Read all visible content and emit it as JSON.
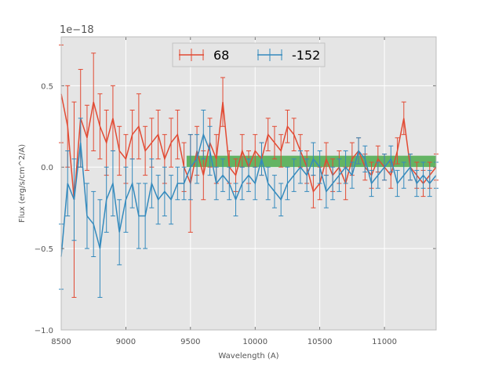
{
  "chart_data": {
    "type": "line",
    "title": "",
    "xlabel": "Wavelength (A)",
    "ylabel": "Flux (erg/s/cm^2/A)",
    "offset_label": "1e−18",
    "xlim": [
      8500,
      11400
    ],
    "ylim": [
      -1.0,
      0.8
    ],
    "grid": true,
    "legend_position": "top-center",
    "x_ticks": [
      8500,
      9000,
      9500,
      10000,
      10500,
      11000
    ],
    "x_tick_labels": [
      "8500",
      "9000",
      "9500",
      "10000",
      "10500",
      "11000"
    ],
    "y_ticks": [
      -1.0,
      -0.5,
      0.0,
      0.5
    ],
    "y_tick_labels": [
      "−1.0",
      "−0.5",
      "0.0",
      "0.5"
    ],
    "band": {
      "x_start": 9470,
      "x_end": 11400,
      "y_low": 0.0,
      "y_high": 0.07,
      "color": "#2ca02c"
    },
    "series": [
      {
        "name": "68",
        "color": "#e24a33",
        "x": [
          8500,
          8550,
          8600,
          8650,
          8700,
          8750,
          8800,
          8850,
          8900,
          8950,
          9000,
          9050,
          9100,
          9150,
          9200,
          9250,
          9300,
          9350,
          9400,
          9450,
          9500,
          9550,
          9600,
          9650,
          9700,
          9750,
          9800,
          9850,
          9900,
          9950,
          10000,
          10050,
          10100,
          10150,
          10200,
          10250,
          10300,
          10350,
          10400,
          10450,
          10500,
          10550,
          10600,
          10650,
          10700,
          10750,
          10800,
          10850,
          10900,
          10950,
          11000,
          11050,
          11100,
          11150,
          11200,
          11250,
          11300,
          11350,
          11400
        ],
        "values": [
          0.45,
          0.25,
          -0.2,
          0.3,
          0.18,
          0.4,
          0.25,
          0.15,
          0.3,
          0.1,
          0.05,
          0.2,
          0.25,
          0.1,
          0.15,
          0.2,
          0.05,
          0.15,
          0.2,
          0.0,
          -0.1,
          0.1,
          -0.05,
          0.15,
          0.05,
          0.4,
          0.0,
          -0.05,
          0.1,
          0.0,
          0.1,
          0.05,
          0.2,
          0.15,
          0.1,
          0.25,
          0.2,
          0.1,
          0.0,
          -0.15,
          -0.1,
          0.05,
          -0.05,
          0.0,
          -0.1,
          0.05,
          0.1,
          0.0,
          -0.05,
          0.05,
          0.0,
          -0.05,
          0.1,
          0.3,
          0.0,
          -0.05,
          -0.1,
          -0.05,
          0.0
        ],
        "errors": [
          0.3,
          0.25,
          0.6,
          0.3,
          0.2,
          0.3,
          0.2,
          0.2,
          0.2,
          0.15,
          0.15,
          0.15,
          0.2,
          0.15,
          0.15,
          0.15,
          0.15,
          0.15,
          0.15,
          0.15,
          0.3,
          0.15,
          0.15,
          0.15,
          0.15,
          0.15,
          0.1,
          0.1,
          0.1,
          0.1,
          0.1,
          0.1,
          0.1,
          0.1,
          0.1,
          0.1,
          0.1,
          0.1,
          0.1,
          0.1,
          0.1,
          0.1,
          0.1,
          0.1,
          0.1,
          0.1,
          0.08,
          0.08,
          0.08,
          0.08,
          0.08,
          0.08,
          0.08,
          0.1,
          0.08,
          0.08,
          0.08,
          0.08,
          0.08
        ]
      },
      {
        "name": "-152",
        "color": "#348abd",
        "x": [
          8500,
          8550,
          8600,
          8650,
          8700,
          8750,
          8800,
          8850,
          8900,
          8950,
          9000,
          9050,
          9100,
          9150,
          9200,
          9250,
          9300,
          9350,
          9400,
          9450,
          9500,
          9550,
          9600,
          9650,
          9700,
          9750,
          9800,
          9850,
          9900,
          9950,
          10000,
          10050,
          10100,
          10150,
          10200,
          10250,
          10300,
          10350,
          10400,
          10450,
          10500,
          10550,
          10600,
          10650,
          10700,
          10750,
          10800,
          10850,
          10900,
          10950,
          11000,
          11050,
          11100,
          11150,
          11200,
          11250,
          11300,
          11350,
          11400
        ],
        "values": [
          -0.55,
          -0.1,
          -0.2,
          0.15,
          -0.3,
          -0.35,
          -0.5,
          -0.2,
          -0.1,
          -0.4,
          -0.2,
          -0.1,
          -0.3,
          -0.3,
          -0.1,
          -0.2,
          -0.15,
          -0.2,
          -0.1,
          -0.1,
          0.0,
          0.05,
          0.2,
          0.1,
          -0.1,
          -0.05,
          -0.1,
          -0.2,
          -0.1,
          -0.05,
          -0.1,
          0.05,
          -0.1,
          -0.15,
          -0.2,
          -0.1,
          -0.05,
          0.0,
          -0.05,
          0.05,
          0.0,
          -0.15,
          -0.1,
          -0.05,
          0.0,
          -0.05,
          0.1,
          0.05,
          -0.1,
          -0.05,
          0.0,
          0.05,
          -0.1,
          -0.05,
          0.0,
          -0.1,
          -0.05,
          -0.1,
          -0.05
        ],
        "errors": [
          0.2,
          0.2,
          0.25,
          0.15,
          0.2,
          0.2,
          0.3,
          0.2,
          0.2,
          0.2,
          0.2,
          0.15,
          0.2,
          0.2,
          0.15,
          0.15,
          0.15,
          0.15,
          0.1,
          0.1,
          0.2,
          0.15,
          0.15,
          0.15,
          0.1,
          0.1,
          0.1,
          0.1,
          0.1,
          0.1,
          0.1,
          0.1,
          0.1,
          0.1,
          0.1,
          0.1,
          0.1,
          0.1,
          0.1,
          0.1,
          0.1,
          0.1,
          0.1,
          0.1,
          0.1,
          0.08,
          0.08,
          0.08,
          0.08,
          0.08,
          0.08,
          0.08,
          0.08,
          0.08,
          0.08,
          0.08,
          0.08,
          0.08,
          0.08
        ]
      }
    ]
  }
}
